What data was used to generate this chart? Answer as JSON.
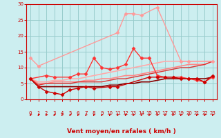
{
  "xlabel": "Vent moyen/en rafales ( km/h )",
  "xlim": [
    -0.5,
    23.5
  ],
  "ylim": [
    0,
    30
  ],
  "yticks": [
    0,
    5,
    10,
    15,
    20,
    25,
    30
  ],
  "xticks": [
    0,
    1,
    2,
    3,
    4,
    5,
    6,
    7,
    8,
    9,
    10,
    11,
    12,
    13,
    14,
    15,
    16,
    17,
    18,
    19,
    20,
    21,
    22,
    23
  ],
  "bg_color": "#cceef0",
  "grid_color": "#99cccc",
  "series": [
    {
      "x": [
        0,
        1,
        11,
        12,
        13,
        14,
        16,
        19,
        20,
        23
      ],
      "y": [
        13,
        10.5,
        21,
        27,
        27,
        26.5,
        29,
        12,
        12,
        12
      ],
      "color": "#ff9999",
      "marker": "D",
      "markersize": 2.5,
      "linewidth": 1.0
    },
    {
      "x": [
        0,
        1,
        2,
        3,
        4,
        5,
        6,
        7,
        8,
        9,
        10,
        11,
        12,
        13,
        14,
        15,
        16,
        17,
        18,
        19,
        20,
        21,
        22,
        23
      ],
      "y": [
        6.5,
        5.5,
        5.5,
        6,
        6,
        6.5,
        6.5,
        7,
        7.5,
        8,
        8.5,
        9,
        9.5,
        10,
        10.5,
        11,
        11.5,
        12,
        12,
        12,
        12,
        12,
        12,
        12
      ],
      "color": "#ffaaaa",
      "marker": null,
      "linewidth": 1.2
    },
    {
      "x": [
        0,
        2,
        3,
        5,
        6,
        7,
        8,
        9,
        10,
        11,
        12,
        13,
        14,
        15,
        16,
        17,
        18,
        19,
        20,
        21,
        22,
        23
      ],
      "y": [
        6.5,
        7.5,
        7,
        7,
        8,
        8,
        13,
        10,
        9.5,
        10,
        11,
        16,
        13,
        13,
        7.5,
        7,
        7,
        7,
        6.5,
        6,
        5.5,
        7
      ],
      "color": "#ff3333",
      "marker": "D",
      "markersize": 2.5,
      "linewidth": 1.0
    },
    {
      "x": [
        0,
        1,
        2,
        3,
        4,
        5,
        6,
        7,
        8,
        10,
        11,
        15,
        16,
        17,
        18,
        19,
        20,
        21,
        22,
        23
      ],
      "y": [
        6.5,
        4,
        2.5,
        2,
        1.5,
        3,
        3.5,
        4,
        3.5,
        4,
        4,
        7,
        7,
        7,
        7,
        6.5,
        6.5,
        6.5,
        5.5,
        7.5
      ],
      "color": "#cc0000",
      "marker": "D",
      "markersize": 2.5,
      "linewidth": 1.0
    },
    {
      "x": [
        0,
        1,
        2,
        3,
        4,
        5,
        6,
        7,
        8,
        9,
        10,
        11,
        12,
        13,
        14,
        15,
        16,
        17,
        18,
        19,
        20,
        21,
        22,
        23
      ],
      "y": [
        6.5,
        4,
        4,
        4,
        4,
        4,
        4,
        4,
        4,
        4,
        4.5,
        4.5,
        5,
        5,
        5.5,
        5.5,
        6,
        6.5,
        6.5,
        6.5,
        6.5,
        6.5,
        6.5,
        7
      ],
      "color": "#880000",
      "marker": null,
      "linewidth": 1.2
    },
    {
      "x": [
        0,
        1,
        2,
        3,
        4,
        5,
        6,
        7,
        8,
        9,
        10,
        11,
        12,
        13,
        14,
        15,
        16,
        17,
        18,
        19,
        20,
        21,
        22,
        23
      ],
      "y": [
        6.5,
        5,
        5,
        5.5,
        5.5,
        5.5,
        5.5,
        6,
        6,
        6.5,
        6.5,
        7,
        7.5,
        7.5,
        8,
        8.5,
        9,
        9.5,
        10,
        10.5,
        11,
        11,
        11,
        12
      ],
      "color": "#ff8888",
      "marker": null,
      "linewidth": 1.2
    },
    {
      "x": [
        0,
        1,
        2,
        3,
        4,
        5,
        6,
        7,
        8,
        9,
        10,
        11,
        12,
        13,
        14,
        15,
        16,
        17,
        18,
        19,
        20,
        21,
        22,
        23
      ],
      "y": [
        6.5,
        4.5,
        5,
        5,
        5,
        5,
        5.5,
        5.5,
        5.5,
        5.5,
        6,
        6.5,
        6.5,
        7,
        7.5,
        8,
        8.5,
        9,
        9.5,
        10,
        10,
        10.5,
        11,
        12
      ],
      "color": "#dd3333",
      "marker": null,
      "linewidth": 1.0
    }
  ],
  "axis_color": "#cc0000",
  "tick_color": "#cc0000",
  "label_color": "#cc0000",
  "tick_fontsize": 5.0,
  "xlabel_fontsize": 6.5
}
